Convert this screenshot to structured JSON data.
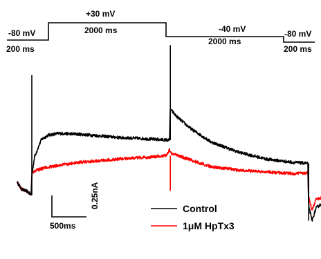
{
  "chart_data": {
    "type": "line",
    "title": "",
    "xlabel": "",
    "ylabel": "",
    "protocol": {
      "steps": [
        {
          "voltage_label": "-80 mV",
          "duration_label": "200 ms",
          "voltage_mV": -80,
          "duration_ms": 200
        },
        {
          "voltage_label": "+30 mV",
          "duration_label": "2000 ms",
          "voltage_mV": 30,
          "duration_ms": 2000
        },
        {
          "voltage_label": "-40 mV",
          "duration_label": "2000 ms",
          "voltage_mV": -40,
          "duration_ms": 2000
        },
        {
          "voltage_label": "-80 mV",
          "duration_label": "200 ms",
          "voltage_mV": -80,
          "duration_ms": 200
        }
      ]
    },
    "scale_bar": {
      "current_label": "0.25nA",
      "time_label": "500ms",
      "current_nA": 0.25,
      "time_ms": 500
    },
    "series": [
      {
        "name": "Control",
        "color": "#000000",
        "x_ms": [
          0,
          60,
          150,
          200,
          210,
          250,
          350,
          450,
          600,
          900,
          1200,
          1500,
          1800,
          2000,
          2200,
          2210,
          2215,
          2300,
          2500,
          2800,
          3200,
          3600,
          4000,
          4200,
          4210,
          4260,
          4320,
          4400
        ],
        "y_nA": [
          0.05,
          -0.03,
          -0.06,
          -0.1,
          0.13,
          0.35,
          0.55,
          0.6,
          0.62,
          0.61,
          0.59,
          0.57,
          0.56,
          0.55,
          0.54,
          0.9,
          0.9,
          0.82,
          0.68,
          0.52,
          0.4,
          0.32,
          0.28,
          0.27,
          -0.22,
          -0.4,
          -0.25,
          -0.2
        ]
      },
      {
        "name": "1μM HpTx3",
        "color": "#ff0000",
        "x_ms": [
          0,
          60,
          150,
          200,
          210,
          250,
          400,
          700,
          1000,
          1300,
          1600,
          1900,
          2150,
          2200,
          2230,
          2300,
          2500,
          2800,
          3200,
          3600,
          4000,
          4200,
          4210,
          4260,
          4320,
          4400
        ],
        "y_nA": [
          0.05,
          -0.03,
          -0.06,
          -0.1,
          0.15,
          0.18,
          0.22,
          0.26,
          0.29,
          0.31,
          0.33,
          0.34,
          0.36,
          0.43,
          0.38,
          0.37,
          0.31,
          0.23,
          0.19,
          0.17,
          0.15,
          0.16,
          -0.12,
          -0.28,
          -0.15,
          -0.13
        ]
      }
    ],
    "legend": {
      "placement": "bottom-right"
    }
  }
}
